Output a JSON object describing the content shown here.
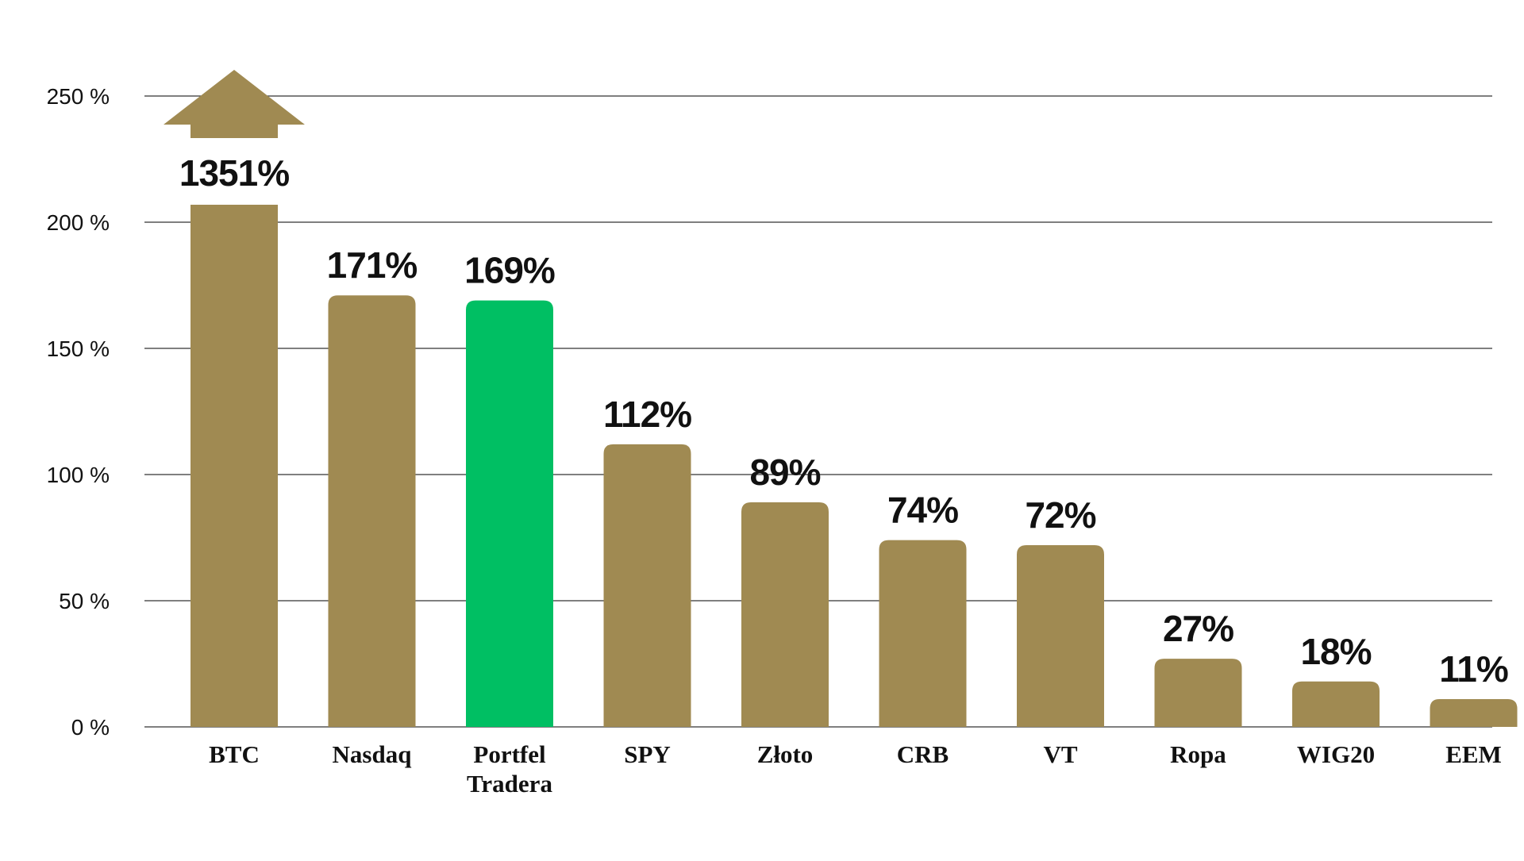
{
  "chart_data": {
    "type": "bar",
    "categories": [
      "BTC",
      "Nasdaq",
      "Portfel Tradera",
      "SPY",
      "Złoto",
      "CRB",
      "VT",
      "Ropa",
      "WIG20",
      "EEM"
    ],
    "category_lines": [
      [
        "BTC"
      ],
      [
        "Nasdaq"
      ],
      [
        "Portfel",
        "Tradera"
      ],
      [
        "SPY"
      ],
      [
        "Złoto"
      ],
      [
        "CRB"
      ],
      [
        "VT"
      ],
      [
        "Ropa"
      ],
      [
        "WIG20"
      ],
      [
        "EEM"
      ]
    ],
    "values": [
      1351,
      171,
      169,
      112,
      89,
      74,
      72,
      27,
      18,
      11
    ],
    "value_labels": [
      "1351%",
      "171%",
      "169%",
      "112%",
      "89%",
      "74%",
      "72%",
      "27%",
      "18%",
      "11%"
    ],
    "truncated": [
      true,
      false,
      false,
      false,
      false,
      false,
      false,
      false,
      false,
      false
    ],
    "highlighted_category": "Portfel Tradera",
    "title": "",
    "xlabel": "",
    "ylabel": "",
    "ylim": [
      0,
      250
    ],
    "yticks": [
      0,
      50,
      100,
      150,
      200,
      250
    ],
    "ytick_labels": [
      "0 %",
      "50 %",
      "100 %",
      "150 %",
      "200 %",
      "250 %"
    ],
    "grid": true,
    "legend": "none",
    "colors": {
      "bar": "#A08A52",
      "highlight": "#00BF63",
      "grid": "#333333",
      "text": "#111111"
    }
  }
}
